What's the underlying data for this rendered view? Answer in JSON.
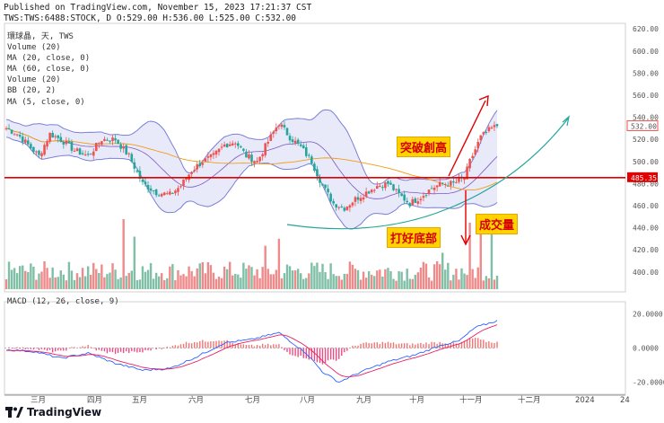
{
  "header": {
    "published": "Published on TradingView.com, November 15, 2023 17:21:37 CST",
    "symbol_line": "TWS:TWS:6488:STOCK, D O:529.00 H:536.00 L:525.00 C:532.00"
  },
  "legend": [
    "環球晶, 天, TWS",
    "Volume (20)",
    "MA (20, close, 0)",
    "MA (60, close, 0)",
    "Volume (20)",
    "BB (20, 2)",
    "MA (5, close, 0)"
  ],
  "macd_legend": "MACD (12, 26, close, 9)",
  "annotations": {
    "breakout": "突破創高",
    "bottom": "打好底部",
    "volume": "成交量"
  },
  "footer": {
    "brand": "TradingView"
  },
  "colors": {
    "up": "#ef5350",
    "down": "#26a69a",
    "bb": "#7b7fd6",
    "bbFill": "#d6d8f5",
    "ma20": "#7e57c2",
    "ma60": "#f39c12",
    "resistance": "#e00000",
    "arc": "#26a69a",
    "volUp": "#ef8a8a",
    "volDown": "#7fbfa5",
    "macd": "#2962ff",
    "signal": "#e91e63"
  },
  "chart_data": [
    {
      "type": "candlestick",
      "title": "環球晶 (TWS:6488) Daily",
      "y_ticks": [
        400,
        420,
        440,
        460,
        480,
        500,
        520,
        540,
        560,
        580,
        600,
        620
      ],
      "ylim": [
        382,
        625
      ],
      "x_labels": [
        "三月",
        "四月",
        "五月",
        "六月",
        "七月",
        "八月",
        "九月",
        "十月",
        "十一月",
        "十二月",
        "2024",
        "24"
      ],
      "last_price": "532.00",
      "resistance_price": "485.35",
      "resistance_value": 485.35,
      "ohlc_last": {
        "open": 529.0,
        "high": 536.0,
        "low": 525.0,
        "close": 532.0
      },
      "price_path": [
        [
          0,
          530
        ],
        [
          4,
          525
        ],
        [
          8,
          515
        ],
        [
          12,
          505
        ],
        [
          16,
          525
        ],
        [
          20,
          520
        ],
        [
          25,
          510
        ],
        [
          30,
          505
        ],
        [
          35,
          520
        ],
        [
          40,
          520
        ],
        [
          45,
          505
        ],
        [
          50,
          480
        ],
        [
          55,
          472
        ],
        [
          60,
          470
        ],
        [
          64,
          478
        ],
        [
          68,
          492
        ],
        [
          72,
          500
        ],
        [
          76,
          505
        ],
        [
          80,
          515
        ],
        [
          84,
          518
        ],
        [
          88,
          505
        ],
        [
          92,
          500
        ],
        [
          96,
          518
        ],
        [
          100,
          535
        ],
        [
          104,
          522
        ],
        [
          108,
          513
        ],
        [
          112,
          500
        ],
        [
          116,
          478
        ],
        [
          120,
          462
        ],
        [
          124,
          458
        ],
        [
          128,
          466
        ],
        [
          132,
          472
        ],
        [
          136,
          478
        ],
        [
          140,
          480
        ],
        [
          144,
          470
        ],
        [
          148,
          462
        ],
        [
          152,
          468
        ],
        [
          156,
          476
        ],
        [
          160,
          480
        ],
        [
          164,
          480
        ],
        [
          168,
          485
        ],
        [
          170,
          500
        ],
        [
          174,
          522
        ],
        [
          178,
          530
        ],
        [
          180,
          532
        ]
      ],
      "bars": 181
    },
    {
      "type": "bar",
      "title": "Volume",
      "note": "relative daily volume, spikes near breakout",
      "spikes": [
        [
          43,
          1.0
        ],
        [
          47,
          0.75
        ],
        [
          95,
          0.62
        ],
        [
          100,
          0.72
        ],
        [
          160,
          0.52
        ],
        [
          170,
          0.95
        ],
        [
          174,
          0.9
        ],
        [
          178,
          0.8
        ]
      ]
    },
    {
      "type": "line",
      "title": "MACD (12, 26, close, 9)",
      "y_ticks": [
        "20.0000",
        "0.0000",
        "-20.0000"
      ],
      "ylim": [
        -25,
        25
      ],
      "macd_path": [
        [
          0,
          -1
        ],
        [
          10,
          -2
        ],
        [
          20,
          -6
        ],
        [
          30,
          -3
        ],
        [
          40,
          -9
        ],
        [
          50,
          -13
        ],
        [
          60,
          -12
        ],
        [
          70,
          -5
        ],
        [
          80,
          3
        ],
        [
          90,
          5
        ],
        [
          100,
          9
        ],
        [
          105,
          3
        ],
        [
          110,
          -3
        ],
        [
          116,
          -14
        ],
        [
          122,
          -20
        ],
        [
          130,
          -14
        ],
        [
          140,
          -8
        ],
        [
          150,
          -4
        ],
        [
          160,
          2
        ],
        [
          166,
          4
        ],
        [
          172,
          12
        ],
        [
          180,
          16
        ]
      ]
    }
  ]
}
